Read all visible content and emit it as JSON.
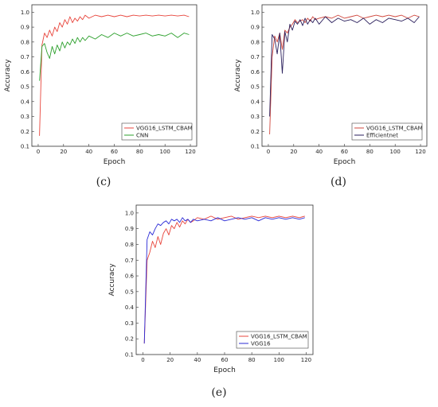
{
  "chart_data": [
    {
      "panel": "(c)",
      "type": "line",
      "xlabel": "Epoch",
      "ylabel": "Accuracy",
      "xlim": [
        -5,
        125
      ],
      "ylim": [
        0.1,
        1.05
      ],
      "xticks": [
        0,
        20,
        40,
        60,
        80,
        100,
        120
      ],
      "yticks": [
        0.1,
        0.2,
        0.3,
        0.4,
        0.5,
        0.6,
        0.7,
        0.8,
        0.9,
        1.0
      ],
      "legend_position": "bottom-right",
      "series": [
        {
          "name": "VGG16_LSTM_CBAM",
          "color": "#e8453c",
          "x": [
            1,
            3,
            5,
            7,
            9,
            11,
            13,
            15,
            17,
            19,
            21,
            23,
            25,
            27,
            29,
            31,
            33,
            35,
            37,
            40,
            45,
            50,
            55,
            60,
            65,
            70,
            75,
            80,
            85,
            90,
            95,
            100,
            105,
            110,
            115,
            119
          ],
          "y": [
            0.17,
            0.78,
            0.86,
            0.83,
            0.88,
            0.84,
            0.9,
            0.87,
            0.93,
            0.9,
            0.95,
            0.92,
            0.97,
            0.93,
            0.96,
            0.94,
            0.97,
            0.95,
            0.98,
            0.96,
            0.98,
            0.97,
            0.98,
            0.97,
            0.98,
            0.97,
            0.98,
            0.975,
            0.98,
            0.975,
            0.98,
            0.975,
            0.98,
            0.975,
            0.98,
            0.97
          ]
        },
        {
          "name": "CNN",
          "color": "#2ca02c",
          "x": [
            1,
            3,
            5,
            7,
            9,
            11,
            13,
            15,
            17,
            19,
            21,
            23,
            25,
            27,
            29,
            31,
            33,
            35,
            37,
            40,
            45,
            50,
            55,
            60,
            65,
            70,
            75,
            80,
            85,
            90,
            95,
            100,
            105,
            110,
            115,
            119
          ],
          "y": [
            0.54,
            0.77,
            0.79,
            0.73,
            0.69,
            0.77,
            0.72,
            0.78,
            0.74,
            0.8,
            0.76,
            0.8,
            0.78,
            0.82,
            0.79,
            0.83,
            0.8,
            0.83,
            0.81,
            0.84,
            0.82,
            0.85,
            0.83,
            0.86,
            0.84,
            0.86,
            0.84,
            0.85,
            0.86,
            0.84,
            0.85,
            0.84,
            0.86,
            0.83,
            0.86,
            0.85
          ]
        }
      ]
    },
    {
      "panel": "(d)",
      "type": "line",
      "xlabel": "Epoch",
      "ylabel": "Accuracy",
      "xlim": [
        -5,
        125
      ],
      "ylim": [
        0.1,
        1.05
      ],
      "xticks": [
        0,
        20,
        40,
        60,
        80,
        100,
        120
      ],
      "yticks": [
        0.1,
        0.2,
        0.3,
        0.4,
        0.5,
        0.6,
        0.7,
        0.8,
        0.9,
        1.0
      ],
      "legend_position": "bottom-right",
      "series": [
        {
          "name": "VGG16_LSTM_CBAM",
          "color": "#d0473d",
          "x": [
            1,
            3,
            5,
            7,
            9,
            11,
            13,
            15,
            17,
            19,
            21,
            23,
            25,
            27,
            29,
            31,
            33,
            35,
            37,
            40,
            45,
            50,
            55,
            60,
            65,
            70,
            75,
            80,
            85,
            90,
            95,
            100,
            105,
            110,
            115,
            119
          ],
          "y": [
            0.18,
            0.7,
            0.84,
            0.8,
            0.86,
            0.75,
            0.88,
            0.86,
            0.9,
            0.92,
            0.95,
            0.93,
            0.94,
            0.95,
            0.93,
            0.96,
            0.94,
            0.97,
            0.95,
            0.96,
            0.97,
            0.96,
            0.98,
            0.96,
            0.97,
            0.98,
            0.96,
            0.97,
            0.98,
            0.97,
            0.98,
            0.97,
            0.98,
            0.96,
            0.98,
            0.97
          ]
        },
        {
          "name": "Efficientnet",
          "color": "#2a1f5c",
          "x": [
            1,
            3,
            5,
            7,
            9,
            11,
            13,
            15,
            17,
            19,
            21,
            23,
            25,
            27,
            29,
            31,
            33,
            35,
            37,
            40,
            45,
            50,
            55,
            60,
            65,
            70,
            75,
            80,
            85,
            90,
            95,
            100,
            105,
            110,
            115,
            119
          ],
          "y": [
            0.3,
            0.85,
            0.82,
            0.72,
            0.86,
            0.59,
            0.87,
            0.8,
            0.92,
            0.88,
            0.94,
            0.92,
            0.95,
            0.91,
            0.96,
            0.92,
            0.95,
            0.93,
            0.96,
            0.92,
            0.97,
            0.93,
            0.96,
            0.94,
            0.95,
            0.93,
            0.96,
            0.92,
            0.95,
            0.93,
            0.96,
            0.95,
            0.94,
            0.96,
            0.93,
            0.97
          ]
        }
      ]
    },
    {
      "panel": "(e)",
      "type": "line",
      "xlabel": "Epoch",
      "ylabel": "Accuracy",
      "xlim": [
        -5,
        125
      ],
      "ylim": [
        0.1,
        1.05
      ],
      "xticks": [
        0,
        20,
        40,
        60,
        80,
        100,
        120
      ],
      "yticks": [
        0.1,
        0.2,
        0.3,
        0.4,
        0.5,
        0.6,
        0.7,
        0.8,
        0.9,
        1.0
      ],
      "legend_position": "bottom-right",
      "series": [
        {
          "name": "VGG16_LSTM_CBAM",
          "color": "#e8453c",
          "x": [
            1,
            3,
            5,
            7,
            9,
            11,
            13,
            15,
            17,
            19,
            21,
            23,
            25,
            27,
            29,
            31,
            33,
            35,
            37,
            40,
            45,
            50,
            55,
            60,
            65,
            70,
            75,
            80,
            85,
            90,
            95,
            100,
            105,
            110,
            115,
            119
          ],
          "y": [
            0.17,
            0.7,
            0.75,
            0.82,
            0.78,
            0.85,
            0.8,
            0.87,
            0.9,
            0.86,
            0.92,
            0.9,
            0.94,
            0.91,
            0.95,
            0.93,
            0.96,
            0.94,
            0.95,
            0.97,
            0.96,
            0.98,
            0.96,
            0.97,
            0.98,
            0.96,
            0.97,
            0.98,
            0.97,
            0.98,
            0.97,
            0.98,
            0.97,
            0.98,
            0.97,
            0.98
          ]
        },
        {
          "name": "VGG16",
          "color": "#2b2bd6",
          "x": [
            1,
            3,
            5,
            7,
            9,
            11,
            13,
            15,
            17,
            19,
            21,
            23,
            25,
            27,
            29,
            31,
            33,
            35,
            37,
            40,
            45,
            50,
            55,
            60,
            65,
            70,
            75,
            80,
            85,
            90,
            95,
            100,
            105,
            110,
            115,
            119
          ],
          "y": [
            0.17,
            0.83,
            0.88,
            0.86,
            0.9,
            0.93,
            0.92,
            0.94,
            0.95,
            0.93,
            0.96,
            0.95,
            0.96,
            0.94,
            0.97,
            0.95,
            0.96,
            0.94,
            0.96,
            0.95,
            0.96,
            0.95,
            0.97,
            0.95,
            0.96,
            0.97,
            0.96,
            0.97,
            0.95,
            0.97,
            0.96,
            0.97,
            0.96,
            0.97,
            0.96,
            0.97
          ]
        }
      ]
    }
  ]
}
